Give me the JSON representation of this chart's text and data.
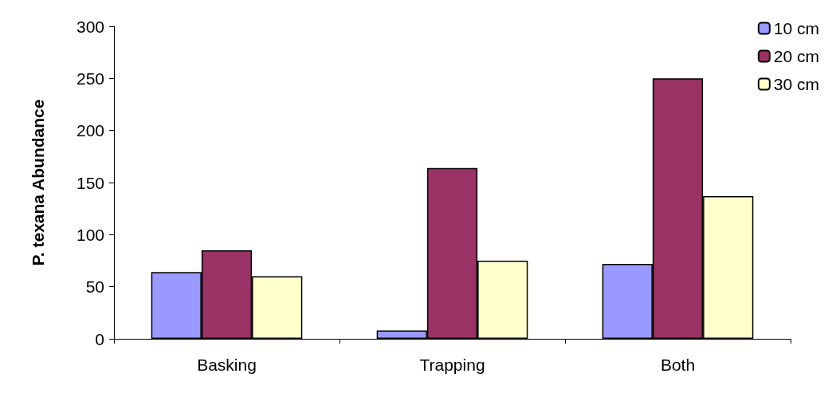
{
  "chart_data": {
    "type": "bar",
    "ylabel": "P. texana Abundance",
    "categories": [
      "Basking",
      "Trapping",
      "Both"
    ],
    "series": [
      {
        "name": "10 cm",
        "color": "#9999ff",
        "values": [
          64,
          8,
          72
        ]
      },
      {
        "name": "20 cm",
        "color": "#993366",
        "values": [
          85,
          164,
          250
        ]
      },
      {
        "name": "30 cm",
        "color": "#ffffcc",
        "values": [
          60,
          75,
          137
        ]
      }
    ],
    "ylim": [
      0,
      300
    ],
    "yticks": [
      0,
      50,
      100,
      150,
      200,
      250,
      300
    ],
    "grid": false,
    "legend": "top right"
  }
}
